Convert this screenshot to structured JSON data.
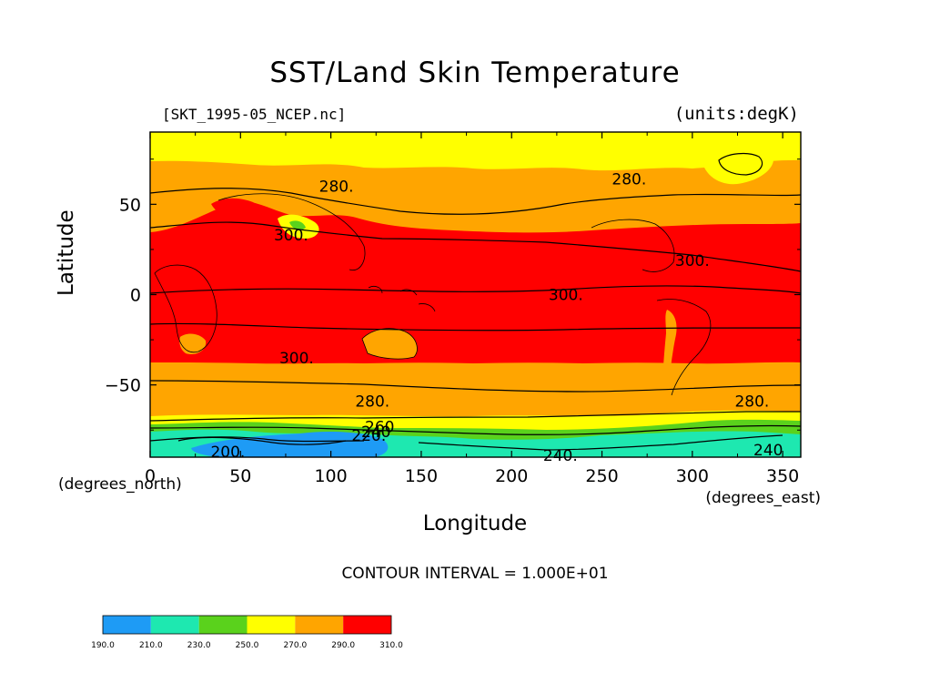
{
  "title": "SST/Land Skin Temperature",
  "file_label": "[SKT_1995-05_NCEP.nc]",
  "units_label": "(units:degK)",
  "x_axis": {
    "label": "Longitude",
    "unit_left": "(degrees_north)",
    "unit_right": "(degrees_east)",
    "range": [
      0,
      360
    ],
    "ticks": [
      "0",
      "50",
      "100",
      "150",
      "200",
      "250",
      "300",
      "350"
    ]
  },
  "y_axis": {
    "label": "Latitude",
    "range": [
      -90,
      90
    ],
    "ticks": [
      "50",
      "0",
      "−50"
    ]
  },
  "contour_interval_text": "CONTOUR INTERVAL = 1.000E+01",
  "contour_labels": [
    {
      "text": "280.",
      "lon": 103,
      "lat": 60
    },
    {
      "text": "280.",
      "lon": 265,
      "lat": 64
    },
    {
      "text": "300.",
      "lon": 78,
      "lat": 33
    },
    {
      "text": "300.",
      "lon": 300,
      "lat": 19
    },
    {
      "text": "300.",
      "lon": 230,
      "lat": 0
    },
    {
      "text": "300.",
      "lon": 81,
      "lat": -35
    },
    {
      "text": "280.",
      "lon": 123,
      "lat": -59
    },
    {
      "text": "280.",
      "lon": 333,
      "lat": -59
    },
    {
      "text": "260",
      "lon": 127,
      "lat": -73
    },
    {
      "text": "240",
      "lon": 125,
      "lat": -76
    },
    {
      "text": "220.",
      "lon": 121,
      "lat": -78
    },
    {
      "text": "200.",
      "lon": 43,
      "lat": -87
    },
    {
      "text": "240.",
      "lon": 227,
      "lat": -89
    },
    {
      "text": "240",
      "lon": 342,
      "lat": -86
    }
  ],
  "colorbar": {
    "levels": [
      "190.0",
      "210.0",
      "230.0",
      "250.0",
      "270.0",
      "290.0",
      "310.0"
    ],
    "colors": [
      "#1e9bf5",
      "#1ee8b0",
      "#5ad21c",
      "#ffff00",
      "#ffa500",
      "#ff0000"
    ]
  },
  "colors": {
    "red": "#ff0000",
    "orange": "#ffa500",
    "yellow": "#ffff00",
    "green": "#5ad21c",
    "teal": "#1ee8b0",
    "blue": "#1e9bf5"
  }
}
